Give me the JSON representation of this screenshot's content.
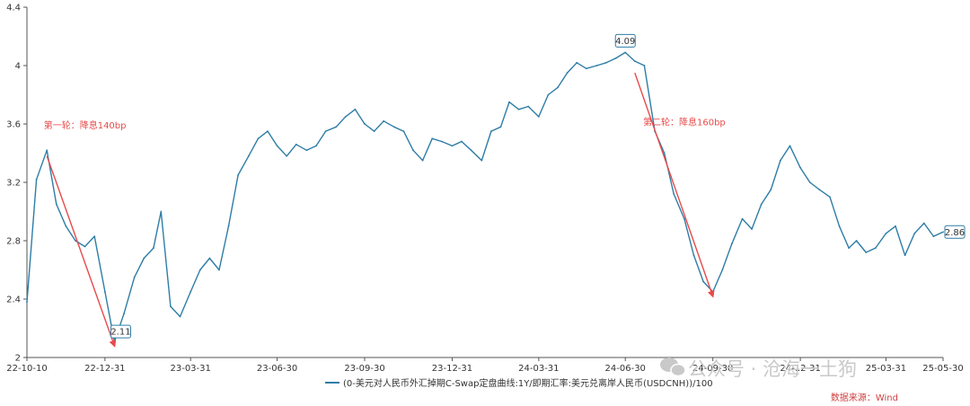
{
  "chart_data": {
    "type": "line",
    "title": "",
    "xlabel": "",
    "ylabel": "",
    "ylim": [
      2,
      4.4
    ],
    "yticks": [
      "2",
      "2.4",
      "2.8",
      "3.2",
      "3.6",
      "4",
      "4.4"
    ],
    "xticks": [
      "22-10-10",
      "22-12-31",
      "23-03-31",
      "23-06-30",
      "23-09-30",
      "23-12-31",
      "24-03-31",
      "24-06-30",
      "24-09-30",
      "24-12-31",
      "25-03-31",
      "25-05-30"
    ],
    "series": [
      {
        "name": "(0-美元对人民币外汇掉期C-Swap定盘曲线:1Y/即期汇率:美元兑离岸人民币(USDCNH))/100",
        "color": "#2e7da6",
        "x": [
          "22-10-10",
          "22-10-20",
          "22-10-31",
          "22-11-10",
          "22-11-20",
          "22-11-30",
          "22-12-10",
          "22-12-20",
          "22-12-31",
          "23-01-10",
          "23-01-20",
          "23-01-31",
          "23-02-10",
          "23-02-20",
          "23-02-28",
          "23-03-10",
          "23-03-20",
          "23-03-31",
          "23-04-10",
          "23-04-20",
          "23-04-30",
          "23-05-10",
          "23-05-20",
          "23-05-31",
          "23-06-10",
          "23-06-20",
          "23-06-30",
          "23-07-10",
          "23-07-20",
          "23-07-31",
          "23-08-10",
          "23-08-20",
          "23-08-31",
          "23-09-10",
          "23-09-20",
          "23-09-30",
          "23-10-10",
          "23-10-20",
          "23-10-31",
          "23-11-10",
          "23-11-20",
          "23-11-30",
          "23-12-10",
          "23-12-20",
          "23-12-31",
          "24-01-10",
          "24-01-20",
          "24-01-31",
          "24-02-10",
          "24-02-20",
          "24-02-29",
          "24-03-10",
          "24-03-20",
          "24-03-31",
          "24-04-10",
          "24-04-20",
          "24-04-30",
          "24-05-10",
          "24-05-20",
          "24-05-31",
          "24-06-10",
          "24-06-20",
          "24-06-30",
          "24-07-10",
          "24-07-20",
          "24-07-31",
          "24-08-10",
          "24-08-20",
          "24-08-31",
          "24-09-10",
          "24-09-20",
          "24-09-30",
          "24-10-10",
          "24-10-20",
          "24-10-31",
          "24-11-10",
          "24-11-20",
          "24-11-30",
          "24-12-10",
          "24-12-20",
          "24-12-31",
          "25-01-10",
          "25-01-20",
          "25-01-31",
          "25-02-10",
          "25-02-20",
          "25-02-28",
          "25-03-10",
          "25-03-20",
          "25-03-31",
          "25-04-10",
          "25-04-20",
          "25-04-30",
          "25-05-10",
          "25-05-20",
          "25-05-30"
        ],
        "values": [
          2.38,
          3.22,
          3.42,
          3.05,
          2.9,
          2.8,
          2.76,
          2.83,
          2.45,
          2.11,
          2.3,
          2.55,
          2.68,
          2.75,
          3.0,
          2.35,
          2.28,
          2.45,
          2.6,
          2.68,
          2.6,
          2.9,
          3.25,
          3.38,
          3.5,
          3.55,
          3.45,
          3.38,
          3.46,
          3.42,
          3.45,
          3.55,
          3.58,
          3.65,
          3.7,
          3.6,
          3.55,
          3.62,
          3.58,
          3.55,
          3.42,
          3.35,
          3.5,
          3.48,
          3.45,
          3.48,
          3.42,
          3.35,
          3.55,
          3.58,
          3.75,
          3.7,
          3.72,
          3.65,
          3.8,
          3.85,
          3.95,
          4.02,
          3.98,
          4.0,
          4.02,
          4.05,
          4.09,
          4.03,
          4.0,
          3.55,
          3.4,
          3.12,
          2.95,
          2.7,
          2.52,
          2.45,
          2.6,
          2.78,
          2.95,
          2.88,
          3.05,
          3.15,
          3.35,
          3.45,
          3.3,
          3.2,
          3.15,
          3.1,
          2.9,
          2.75,
          2.8,
          2.72,
          2.75,
          2.85,
          2.9,
          2.7,
          2.85,
          2.92,
          2.83,
          2.86
        ]
      }
    ],
    "point_labels": [
      {
        "x": "23-01-10",
        "value": "2.11"
      },
      {
        "x": "24-06-30",
        "value": "4.09"
      },
      {
        "x": "25-05-30",
        "value": "2.86"
      }
    ],
    "arrows": [
      {
        "from": [
          "22-10-31",
          3.38
        ],
        "to": [
          "23-01-10",
          2.08
        ]
      },
      {
        "from": [
          "24-07-10",
          3.95
        ],
        "to": [
          "24-09-30",
          2.42
        ]
      }
    ],
    "annotations": [
      {
        "text": "第一轮：降息140bp",
        "x": "22-12-10",
        "y": 3.57
      },
      {
        "text": "第二轮：降息160bp",
        "x": "24-08-31",
        "y": 3.59
      }
    ],
    "grid": false,
    "legend_position": "bottom-center"
  },
  "watermark": {
    "text": "公众号 · 沧海一土狗",
    "source_text": "数据来源：Wind"
  }
}
